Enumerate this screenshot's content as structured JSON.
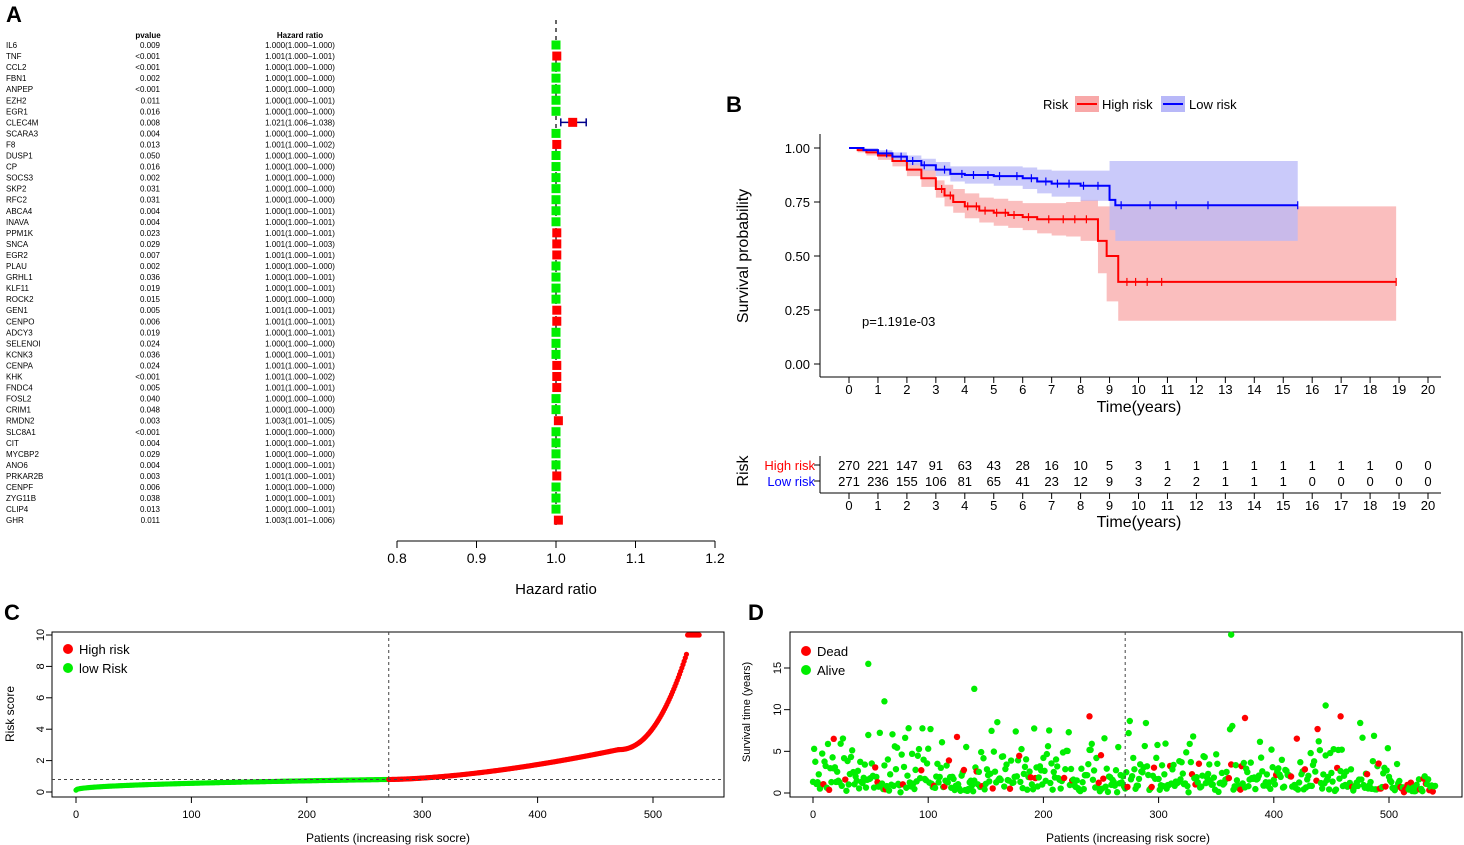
{
  "panel_labels": {
    "a": "A",
    "b": "B",
    "c": "C",
    "d": "D"
  },
  "chart_data": [
    {
      "panel": "A",
      "type": "forest",
      "col_pvalue": "pvalue",
      "col_hr": "Hazard ratio",
      "xlabel": "Hazard ratio",
      "xlim": [
        0.8,
        1.2
      ],
      "xticks": [
        "0.8",
        "0.9",
        "1.0",
        "1.1",
        "1.2"
      ],
      "reference": 1.0,
      "genes": [
        {
          "name": "IL6",
          "p": "0.009",
          "hr_text": "1.000(1.000–1.000)",
          "hr": 1.0,
          "lo": 1.0,
          "hi": 1.0,
          "color": "green"
        },
        {
          "name": "TNF",
          "p": "<0.001",
          "hr_text": "1.001(1.000–1.001)",
          "hr": 1.001,
          "lo": 1.0,
          "hi": 1.001,
          "color": "red"
        },
        {
          "name": "CCL2",
          "p": "<0.001",
          "hr_text": "1.000(1.000–1.000)",
          "hr": 1.0,
          "lo": 1.0,
          "hi": 1.0,
          "color": "green"
        },
        {
          "name": "FBN1",
          "p": "0.002",
          "hr_text": "1.000(1.000–1.000)",
          "hr": 1.0,
          "lo": 1.0,
          "hi": 1.0,
          "color": "green"
        },
        {
          "name": "ANPEP",
          "p": "<0.001",
          "hr_text": "1.000(1.000–1.000)",
          "hr": 1.0,
          "lo": 1.0,
          "hi": 1.0,
          "color": "green"
        },
        {
          "name": "EZH2",
          "p": "0.011",
          "hr_text": "1.000(1.000–1.001)",
          "hr": 1.0,
          "lo": 1.0,
          "hi": 1.001,
          "color": "green"
        },
        {
          "name": "EGR1",
          "p": "0.016",
          "hr_text": "1.000(1.000–1.000)",
          "hr": 1.0,
          "lo": 1.0,
          "hi": 1.0,
          "color": "green"
        },
        {
          "name": "CLEC4M",
          "p": "0.008",
          "hr_text": "1.021(1.006–1.038)",
          "hr": 1.021,
          "lo": 1.006,
          "hi": 1.038,
          "color": "red"
        },
        {
          "name": "SCARA3",
          "p": "0.004",
          "hr_text": "1.000(1.000–1.000)",
          "hr": 1.0,
          "lo": 1.0,
          "hi": 1.0,
          "color": "green"
        },
        {
          "name": "F8",
          "p": "0.013",
          "hr_text": "1.001(1.000–1.002)",
          "hr": 1.001,
          "lo": 1.0,
          "hi": 1.002,
          "color": "red"
        },
        {
          "name": "DUSP1",
          "p": "0.050",
          "hr_text": "1.000(1.000–1.000)",
          "hr": 1.0,
          "lo": 1.0,
          "hi": 1.0,
          "color": "green"
        },
        {
          "name": "CP",
          "p": "0.016",
          "hr_text": "1.000(1.000–1.000)",
          "hr": 1.0,
          "lo": 1.0,
          "hi": 1.0,
          "color": "green"
        },
        {
          "name": "SOCS3",
          "p": "0.002",
          "hr_text": "1.000(1.000–1.000)",
          "hr": 1.0,
          "lo": 1.0,
          "hi": 1.0,
          "color": "green"
        },
        {
          "name": "SKP2",
          "p": "0.031",
          "hr_text": "1.000(1.000–1.000)",
          "hr": 1.0,
          "lo": 1.0,
          "hi": 1.0,
          "color": "green"
        },
        {
          "name": "RFC2",
          "p": "0.031",
          "hr_text": "1.000(1.000–1.000)",
          "hr": 1.0,
          "lo": 1.0,
          "hi": 1.0,
          "color": "green"
        },
        {
          "name": "ABCA4",
          "p": "0.004",
          "hr_text": "1.000(1.000–1.001)",
          "hr": 1.0,
          "lo": 1.0,
          "hi": 1.001,
          "color": "green"
        },
        {
          "name": "INAVA",
          "p": "0.004",
          "hr_text": "1.000(1.000–1.001)",
          "hr": 1.0,
          "lo": 1.0,
          "hi": 1.001,
          "color": "green"
        },
        {
          "name": "PPM1K",
          "p": "0.023",
          "hr_text": "1.001(1.000–1.001)",
          "hr": 1.001,
          "lo": 1.0,
          "hi": 1.001,
          "color": "red"
        },
        {
          "name": "SNCA",
          "p": "0.029",
          "hr_text": "1.001(1.000–1.003)",
          "hr": 1.001,
          "lo": 1.0,
          "hi": 1.003,
          "color": "red"
        },
        {
          "name": "EGR2",
          "p": "0.007",
          "hr_text": "1.001(1.000–1.001)",
          "hr": 1.001,
          "lo": 1.0,
          "hi": 1.001,
          "color": "red"
        },
        {
          "name": "PLAU",
          "p": "0.002",
          "hr_text": "1.000(1.000–1.000)",
          "hr": 1.0,
          "lo": 1.0,
          "hi": 1.0,
          "color": "green"
        },
        {
          "name": "GRHL1",
          "p": "0.036",
          "hr_text": "1.000(1.000–1.001)",
          "hr": 1.0,
          "lo": 1.0,
          "hi": 1.001,
          "color": "green"
        },
        {
          "name": "KLF11",
          "p": "0.019",
          "hr_text": "1.000(1.000–1.001)",
          "hr": 1.0,
          "lo": 1.0,
          "hi": 1.001,
          "color": "green"
        },
        {
          "name": "ROCK2",
          "p": "0.015",
          "hr_text": "1.000(1.000–1.000)",
          "hr": 1.0,
          "lo": 1.0,
          "hi": 1.0,
          "color": "green"
        },
        {
          "name": "GEN1",
          "p": "0.005",
          "hr_text": "1.001(1.000–1.001)",
          "hr": 1.001,
          "lo": 1.0,
          "hi": 1.001,
          "color": "red"
        },
        {
          "name": "CENPO",
          "p": "0.006",
          "hr_text": "1.001(1.000–1.001)",
          "hr": 1.001,
          "lo": 1.0,
          "hi": 1.001,
          "color": "red"
        },
        {
          "name": "ADCY3",
          "p": "0.019",
          "hr_text": "1.000(1.000–1.001)",
          "hr": 1.0,
          "lo": 1.0,
          "hi": 1.001,
          "color": "green"
        },
        {
          "name": "SELENOI",
          "p": "0.024",
          "hr_text": "1.000(1.000–1.000)",
          "hr": 1.0,
          "lo": 1.0,
          "hi": 1.0,
          "color": "green"
        },
        {
          "name": "KCNK3",
          "p": "0.036",
          "hr_text": "1.000(1.000–1.001)",
          "hr": 1.0,
          "lo": 1.0,
          "hi": 1.001,
          "color": "green"
        },
        {
          "name": "CENPA",
          "p": "0.024",
          "hr_text": "1.001(1.000–1.001)",
          "hr": 1.001,
          "lo": 1.0,
          "hi": 1.001,
          "color": "red"
        },
        {
          "name": "KHK",
          "p": "<0.001",
          "hr_text": "1.001(1.000–1.002)",
          "hr": 1.001,
          "lo": 1.0,
          "hi": 1.002,
          "color": "red"
        },
        {
          "name": "FNDC4",
          "p": "0.005",
          "hr_text": "1.001(1.000–1.001)",
          "hr": 1.001,
          "lo": 1.0,
          "hi": 1.001,
          "color": "red"
        },
        {
          "name": "FOSL2",
          "p": "0.040",
          "hr_text": "1.000(1.000–1.000)",
          "hr": 1.0,
          "lo": 1.0,
          "hi": 1.0,
          "color": "green"
        },
        {
          "name": "CRIM1",
          "p": "0.048",
          "hr_text": "1.000(1.000–1.000)",
          "hr": 1.0,
          "lo": 1.0,
          "hi": 1.0,
          "color": "green"
        },
        {
          "name": "RMDN2",
          "p": "0.003",
          "hr_text": "1.003(1.001–1.005)",
          "hr": 1.003,
          "lo": 1.001,
          "hi": 1.005,
          "color": "red"
        },
        {
          "name": "SLC8A1",
          "p": "<0.001",
          "hr_text": "1.000(1.000–1.000)",
          "hr": 1.0,
          "lo": 1.0,
          "hi": 1.0,
          "color": "green"
        },
        {
          "name": "CIT",
          "p": "0.004",
          "hr_text": "1.000(1.000–1.001)",
          "hr": 1.0,
          "lo": 1.0,
          "hi": 1.001,
          "color": "green"
        },
        {
          "name": "MYCBP2",
          "p": "0.029",
          "hr_text": "1.000(1.000–1.000)",
          "hr": 1.0,
          "lo": 1.0,
          "hi": 1.0,
          "color": "green"
        },
        {
          "name": "ANO6",
          "p": "0.004",
          "hr_text": "1.000(1.000–1.001)",
          "hr": 1.0,
          "lo": 1.0,
          "hi": 1.001,
          "color": "green"
        },
        {
          "name": "PRKAR2B",
          "p": "0.003",
          "hr_text": "1.001(1.000–1.001)",
          "hr": 1.001,
          "lo": 1.0,
          "hi": 1.001,
          "color": "red"
        },
        {
          "name": "CENPF",
          "p": "0.006",
          "hr_text": "1.000(1.000–1.000)",
          "hr": 1.0,
          "lo": 1.0,
          "hi": 1.0,
          "color": "green"
        },
        {
          "name": "ZYG11B",
          "p": "0.038",
          "hr_text": "1.000(1.000–1.001)",
          "hr": 1.0,
          "lo": 1.0,
          "hi": 1.001,
          "color": "green"
        },
        {
          "name": "CLIP4",
          "p": "0.013",
          "hr_text": "1.000(1.000–1.001)",
          "hr": 1.0,
          "lo": 1.0,
          "hi": 1.001,
          "color": "green"
        },
        {
          "name": "GHR",
          "p": "0.011",
          "hr_text": "1.003(1.001–1.006)",
          "hr": 1.003,
          "lo": 1.001,
          "hi": 1.006,
          "color": "red"
        }
      ]
    },
    {
      "panel": "B",
      "type": "line",
      "title": "",
      "legend_title": "Risk",
      "legend": [
        "High risk",
        "Low risk"
      ],
      "xlabel": "Time(years)",
      "ylabel": "Survival probability",
      "xlim": [
        0,
        20
      ],
      "ylim": [
        0,
        1
      ],
      "xticks": [
        "0",
        "1",
        "2",
        "3",
        "4",
        "5",
        "6",
        "7",
        "8",
        "9",
        "10",
        "11",
        "12",
        "13",
        "14",
        "15",
        "16",
        "17",
        "18",
        "19",
        "20"
      ],
      "yticks": [
        "0.00",
        "0.25",
        "0.50",
        "0.75",
        "1.00"
      ],
      "pvalue_text": "p=1.191e-03",
      "series": [
        {
          "name": "High risk",
          "color": "#ff0000",
          "fill": "#f8a8a8",
          "x": [
            0,
            0.3,
            0.6,
            1,
            1.5,
            2,
            2.5,
            3,
            3.3,
            3.6,
            4,
            4.5,
            5,
            5.5,
            6,
            6.5,
            7,
            7.5,
            8,
            8.6,
            8.9,
            9.3,
            12,
            15,
            18.9
          ],
          "y": [
            1,
            0.99,
            0.98,
            0.965,
            0.94,
            0.9,
            0.86,
            0.81,
            0.78,
            0.75,
            0.73,
            0.71,
            0.7,
            0.69,
            0.68,
            0.67,
            0.67,
            0.67,
            0.67,
            0.57,
            0.5,
            0.38,
            0.38,
            0.38,
            0.38
          ],
          "lower": [
            1,
            0.98,
            0.965,
            0.945,
            0.915,
            0.87,
            0.82,
            0.77,
            0.73,
            0.7,
            0.675,
            0.655,
            0.64,
            0.63,
            0.62,
            0.605,
            0.595,
            0.59,
            0.57,
            0.42,
            0.29,
            0.2,
            0.2,
            0.2,
            0.2
          ],
          "upper": [
            1,
            1,
            0.995,
            0.985,
            0.965,
            0.93,
            0.9,
            0.85,
            0.83,
            0.81,
            0.79,
            0.77,
            0.765,
            0.755,
            0.745,
            0.745,
            0.745,
            0.75,
            0.76,
            0.73,
            0.73,
            0.73,
            0.73,
            0.73,
            0.73
          ],
          "censor": [
            3.2,
            3.5,
            4.1,
            4.4,
            4.7,
            5.1,
            5.4,
            5.7,
            6.2,
            6.9,
            7.4,
            7.8,
            8.2,
            9.6,
            9.9,
            10.3,
            10.8,
            18.9
          ]
        },
        {
          "name": "Low risk",
          "color": "#0000ff",
          "fill": "#b8b8f8",
          "x": [
            0,
            0.5,
            1,
            1.5,
            2,
            2.5,
            3,
            3.5,
            4,
            5,
            6,
            6.5,
            7,
            8,
            9,
            9.2,
            12,
            15.5
          ],
          "y": [
            1,
            0.99,
            0.975,
            0.96,
            0.94,
            0.92,
            0.9,
            0.88,
            0.875,
            0.87,
            0.86,
            0.845,
            0.835,
            0.825,
            0.76,
            0.735,
            0.735,
            0.735
          ],
          "lower": [
            1,
            0.985,
            0.965,
            0.945,
            0.92,
            0.895,
            0.87,
            0.845,
            0.835,
            0.825,
            0.81,
            0.79,
            0.775,
            0.755,
            0.62,
            0.57,
            0.57,
            0.57
          ],
          "upper": [
            1,
            1,
            0.99,
            0.98,
            0.965,
            0.95,
            0.935,
            0.915,
            0.915,
            0.915,
            0.91,
            0.9,
            0.895,
            0.895,
            0.94,
            0.94,
            0.94,
            0.94
          ],
          "censor": [
            1.3,
            1.8,
            2.2,
            2.6,
            3.3,
            3.9,
            4.3,
            4.8,
            5.2,
            5.8,
            6.3,
            6.8,
            7.2,
            7.6,
            8.1,
            8.6,
            9.4,
            10.4,
            11.3,
            12.4,
            15.5
          ]
        }
      ]
    },
    {
      "panel": "B-table",
      "type": "table",
      "title": "Risk",
      "xlabel": "Time(years)",
      "xticks": [
        "0",
        "1",
        "2",
        "3",
        "4",
        "5",
        "6",
        "7",
        "8",
        "9",
        "10",
        "11",
        "12",
        "13",
        "14",
        "15",
        "16",
        "17",
        "18",
        "19",
        "20"
      ],
      "rows": [
        {
          "label": "High risk",
          "color": "#ff0000",
          "values": [
            "270",
            "221",
            "147",
            "91",
            "63",
            "43",
            "28",
            "16",
            "10",
            "5",
            "3",
            "1",
            "1",
            "1",
            "1",
            "1",
            "1",
            "1",
            "1",
            "0",
            "0"
          ]
        },
        {
          "label": "Low risk",
          "color": "#0000ff",
          "values": [
            "271",
            "236",
            "155",
            "106",
            "81",
            "65",
            "41",
            "23",
            "12",
            "9",
            "3",
            "2",
            "2",
            "1",
            "1",
            "1",
            "0",
            "0",
            "0",
            "0",
            "0"
          ]
        }
      ]
    },
    {
      "panel": "C",
      "type": "scatter",
      "xlabel": "Patients (increasing risk socre)",
      "ylabel": "Risk score",
      "xlim": [
        -20,
        560
      ],
      "ylim": [
        -0.5,
        10.5
      ],
      "xticks": [
        "0",
        "100",
        "200",
        "300",
        "400",
        "500"
      ],
      "yticks": [
        "0",
        "2",
        "4",
        "6",
        "8",
        "10"
      ],
      "legend": [
        "High risk",
        "low Risk"
      ],
      "cutoff_x": 271,
      "cutoff_y": 0.8,
      "n": 541,
      "colors": {
        "high": "#ff0000",
        "low": "#00ee00"
      }
    },
    {
      "panel": "D",
      "type": "scatter",
      "xlabel": "Patients (increasing risk socre)",
      "ylabel": "Survival time (years)",
      "xlim": [
        -20,
        560
      ],
      "ylim": [
        -0.8,
        19.5
      ],
      "xticks": [
        "0",
        "100",
        "200",
        "300",
        "400",
        "500"
      ],
      "yticks": [
        "0",
        "5",
        "10",
        "15"
      ],
      "legend": [
        "Dead",
        "Alive"
      ],
      "cutoff_x": 271,
      "n": 541,
      "colors": {
        "dead": "#ff0000",
        "alive": "#00ee00"
      },
      "notable_points": [
        {
          "x": 363,
          "y": 19,
          "status": "alive"
        },
        {
          "x": 48,
          "y": 15.5,
          "status": "alive"
        },
        {
          "x": 140,
          "y": 12.5,
          "status": "alive"
        },
        {
          "x": 62,
          "y": 11,
          "status": "alive"
        },
        {
          "x": 240,
          "y": 9.2,
          "status": "dead"
        },
        {
          "x": 445,
          "y": 10.5,
          "status": "alive"
        },
        {
          "x": 458,
          "y": 9.2,
          "status": "dead"
        },
        {
          "x": 375,
          "y": 9,
          "status": "dead"
        },
        {
          "x": 18,
          "y": 6.5,
          "status": "dead"
        }
      ]
    }
  ]
}
